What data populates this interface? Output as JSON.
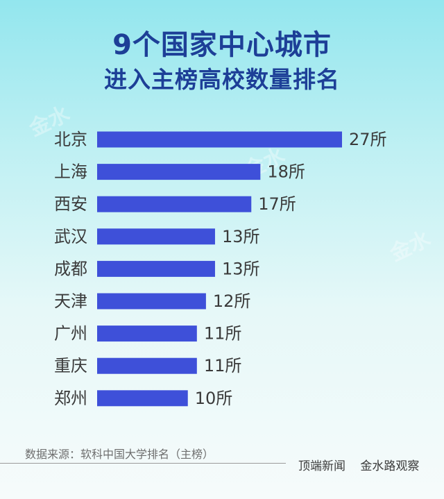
{
  "title": {
    "line1": "9个国家中心城市",
    "line2": "进入主榜高校数量排名"
  },
  "chart_data": {
    "type": "bar",
    "orientation": "horizontal",
    "title": "9个国家中心城市进入主榜高校数量排名",
    "categories": [
      "北京",
      "上海",
      "西安",
      "武汉",
      "成都",
      "天津",
      "广州",
      "重庆",
      "郑州"
    ],
    "values": [
      27,
      18,
      17,
      13,
      13,
      12,
      11,
      11,
      10
    ],
    "value_labels": [
      "27所",
      "18所",
      "17所",
      "13所",
      "13所",
      "12所",
      "11所",
      "11所",
      "10所"
    ],
    "unit": "所",
    "bar_color": "#3e50d9",
    "xlim": [
      0,
      27
    ],
    "grid": false
  },
  "source": "数据来源：软科中国大学排名（主榜）",
  "footer": {
    "credit1": "顶端新闻",
    "credit2": "金水路观察"
  },
  "colors": {
    "title": "#1d3f97",
    "bar": "#3e50d9",
    "background_top": "#93e6ee",
    "background_bottom": "#f6fbfb"
  },
  "watermark": "金水路观察"
}
